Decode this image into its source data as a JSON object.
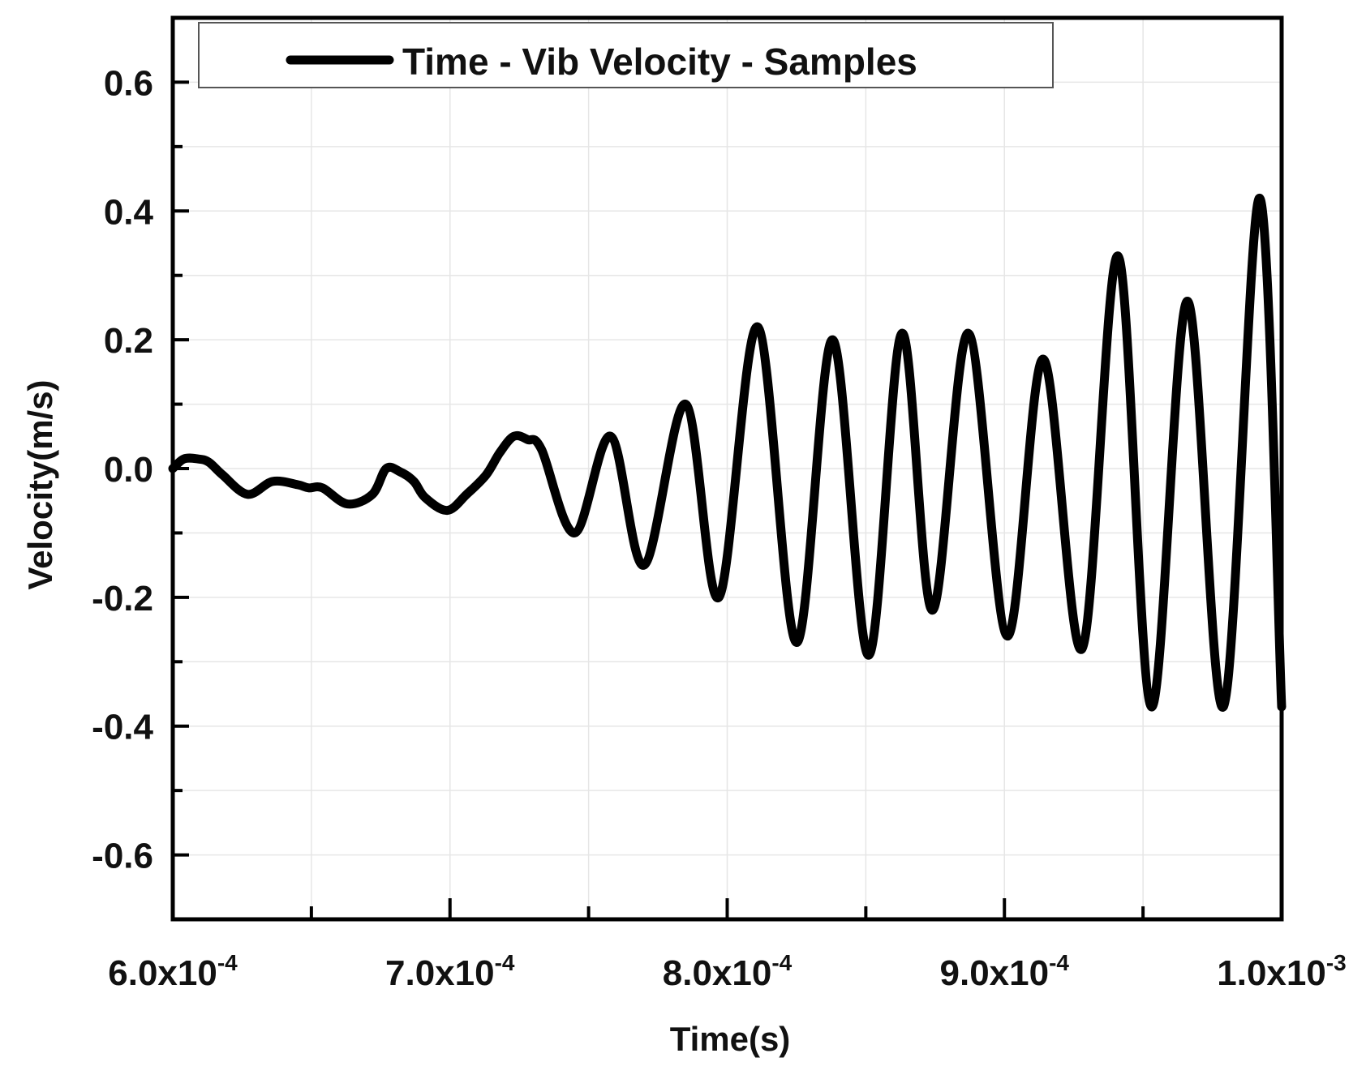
{
  "chart_data": {
    "type": "line",
    "title": "",
    "xlabel": "Time(s)",
    "ylabel": "Velocity(m/s)",
    "xlim": [
      0.0006,
      0.001
    ],
    "ylim": [
      -0.7,
      0.7
    ],
    "grid": true,
    "legend_position": "top",
    "x_ticks": [
      0.0006,
      0.0007,
      0.0008,
      0.0009,
      0.001
    ],
    "x_tick_labels": [
      {
        "mantissa": "6.0x10",
        "exp": "-4"
      },
      {
        "mantissa": "7.0x10",
        "exp": "-4"
      },
      {
        "mantissa": "8.0x10",
        "exp": "-4"
      },
      {
        "mantissa": "9.0x10",
        "exp": "-4"
      },
      {
        "mantissa": "1.0x10",
        "exp": "-3"
      }
    ],
    "y_ticks": [
      0.6,
      0.4,
      0.2,
      0.0,
      -0.2,
      -0.4,
      -0.6
    ],
    "y_tick_labels": [
      "0.6",
      "0.4",
      "0.2",
      "0.0",
      "-0.2",
      "-0.4",
      "-0.6"
    ],
    "series": [
      {
        "name": "Time - Vib Velocity - Samples",
        "color": "#000000",
        "x": [
          0.0006,
          0.000604,
          0.000609,
          0.000613,
          0.000618,
          0.000627,
          0.000636,
          0.000645,
          0.000649,
          0.000654,
          0.000663,
          0.000672,
          0.000677,
          0.000682,
          0.000687,
          0.000691,
          0.000699,
          0.000706,
          0.000713,
          0.000718,
          0.000723,
          0.000728,
          0.000733,
          0.000745,
          0.000758,
          0.00077,
          0.000785,
          0.000797,
          0.000811,
          0.000825,
          0.000838,
          0.000851,
          0.000863,
          0.000874,
          0.000887,
          0.000901,
          0.000914,
          0.000928,
          0.000941,
          0.000953,
          0.000966,
          0.000979,
          0.000992,
          0.001
        ],
        "y": [
          0.0,
          0.015,
          0.015,
          0.01,
          -0.01,
          -0.04,
          -0.02,
          -0.025,
          -0.03,
          -0.03,
          -0.055,
          -0.04,
          0.0,
          -0.005,
          -0.02,
          -0.045,
          -0.065,
          -0.04,
          -0.01,
          0.025,
          0.05,
          0.045,
          0.03,
          -0.1,
          0.05,
          -0.15,
          0.1,
          -0.2,
          0.22,
          -0.27,
          0.2,
          -0.29,
          0.21,
          -0.22,
          0.21,
          -0.26,
          0.17,
          -0.28,
          0.33,
          -0.37,
          0.26,
          -0.37,
          0.42,
          -0.37
        ]
      }
    ]
  }
}
